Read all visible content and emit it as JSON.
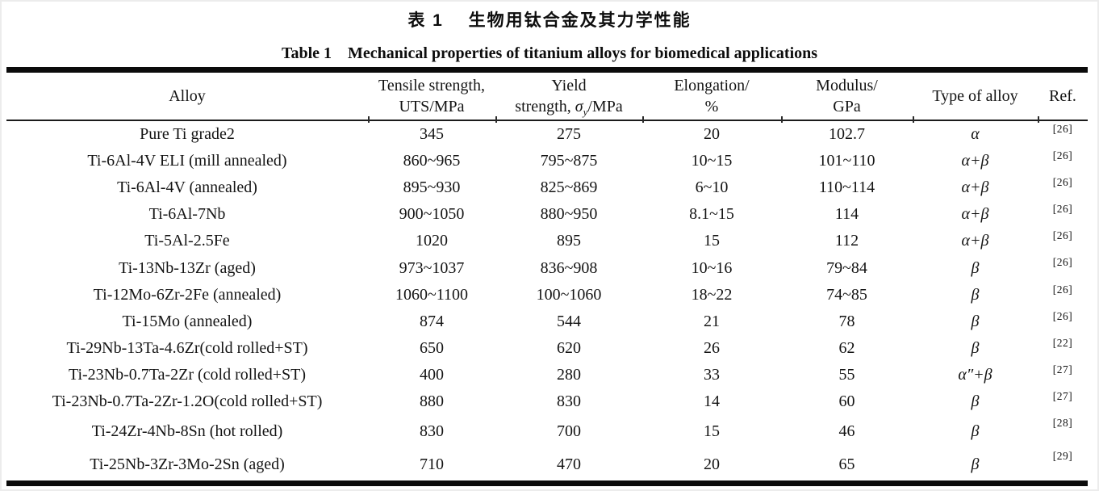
{
  "page": {
    "caption_zh": "表 1　 生物用钛合金及其力学性能",
    "caption_en": "Table 1    Mechanical properties of titanium alloys for biomedical applications"
  },
  "colors": {
    "background": "#ffffff",
    "ink": "#141414",
    "rule": "#0b0b0b"
  },
  "table": {
    "columns": [
      {
        "key": "alloy",
        "lines": [
          "Alloy"
        ]
      },
      {
        "key": "tensile_strength",
        "lines": [
          "Tensile strength,",
          "UTS/MPa"
        ]
      },
      {
        "key": "yield_strength",
        "lines": [
          "Yield",
          {
            "pre": "strength, ",
            "sigma": "σ",
            "sub": "y",
            "post": "/MPa"
          }
        ]
      },
      {
        "key": "elongation",
        "lines": [
          "Elongation/",
          "%"
        ]
      },
      {
        "key": "modulus",
        "lines": [
          "Modulus/",
          "GPa"
        ]
      },
      {
        "key": "type_of_alloy",
        "lines": [
          "Type of alloy"
        ]
      },
      {
        "key": "ref",
        "lines": [
          "Ref."
        ]
      }
    ],
    "rows": [
      [
        "Pure Ti grade2",
        "345",
        "275",
        "20",
        "102.7",
        "α",
        "[26]"
      ],
      [
        "Ti-6Al-4V ELI (mill annealed)",
        "860~965",
        "795~875",
        "10~15",
        "101~110",
        "α+β",
        "[26]"
      ],
      [
        "Ti-6Al-4V (annealed)",
        "895~930",
        "825~869",
        "6~10",
        "110~114",
        "α+β",
        "[26]"
      ],
      [
        "Ti-6Al-7Nb",
        "900~1050",
        "880~950",
        "8.1~15",
        "114",
        "α+β",
        "[26]"
      ],
      [
        "Ti-5Al-2.5Fe",
        "1020",
        "895",
        "15",
        "112",
        "α+β",
        "[26]"
      ],
      [
        "Ti-13Nb-13Zr (aged)",
        "973~1037",
        "836~908",
        "10~16",
        "79~84",
        "β",
        "[26]"
      ],
      [
        "Ti-12Mo-6Zr-2Fe (annealed)",
        "1060~1100",
        "100~1060",
        "18~22",
        "74~85",
        "β",
        "[26]"
      ],
      [
        "Ti-15Mo (annealed)",
        "874",
        "544",
        "21",
        "78",
        "β",
        "[26]"
      ],
      [
        "Ti-29Nb-13Ta-4.6Zr(cold rolled+ST)",
        "650",
        "620",
        "26",
        "62",
        "β",
        "[22]"
      ],
      [
        "Ti-23Nb-0.7Ta-2Zr (cold rolled+ST)",
        "400",
        "280",
        "33",
        "55",
        "α″+β",
        "[27]"
      ],
      [
        "Ti-23Nb-0.7Ta-2Zr-1.2O(cold rolled+ST)",
        "880",
        "830",
        "14",
        "60",
        "β",
        "[27]"
      ],
      [
        "Ti-24Zr-4Nb-8Sn (hot rolled)",
        "830",
        "700",
        "15",
        "46",
        "β",
        "[28]"
      ],
      [
        "Ti-25Nb-3Zr-3Mo-2Sn (aged)",
        "710",
        "470",
        "20",
        "65",
        "β",
        "[29]"
      ]
    ]
  }
}
